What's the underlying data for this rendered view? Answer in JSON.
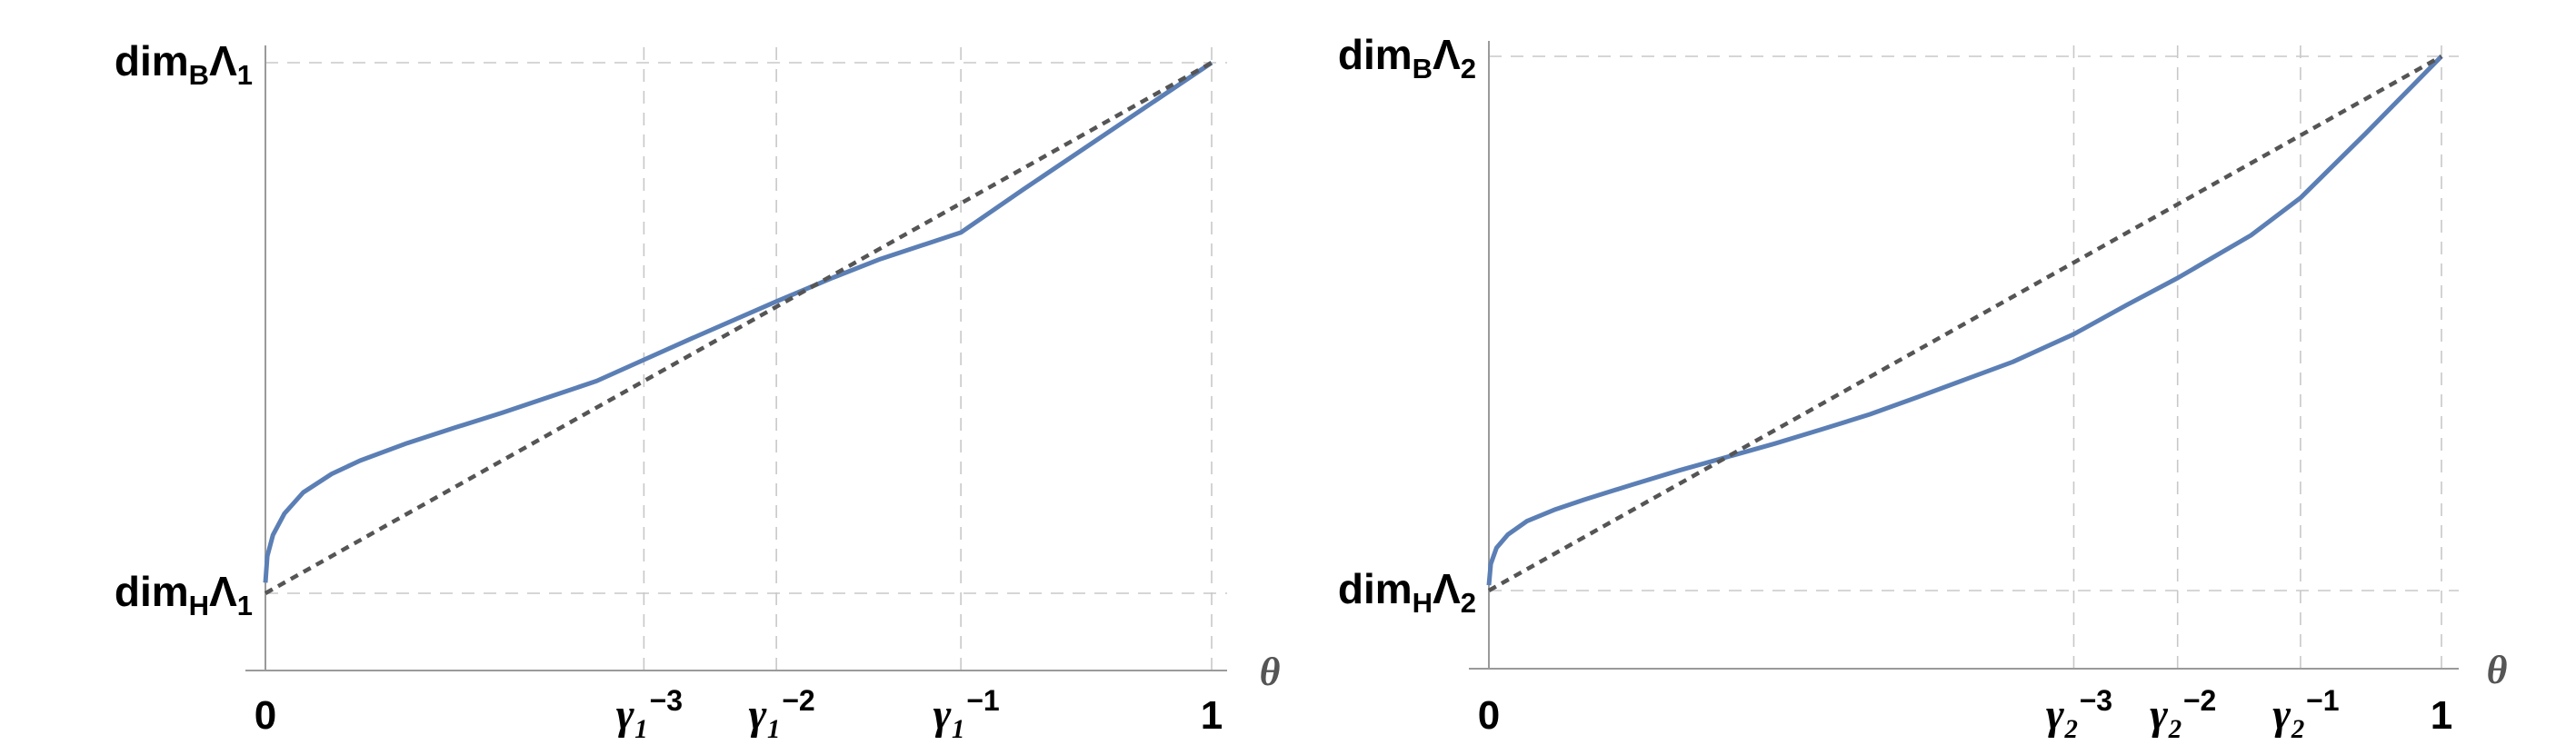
{
  "colors": {
    "curve": "#5b7fb5",
    "diagonal": "#555555",
    "grid": "#c8c8c8",
    "axis": "#9a9a9a"
  },
  "chart_data": [
    {
      "type": "line",
      "xlabel": "θ",
      "x_ticks": [
        {
          "value": 0,
          "base": "0",
          "sup": ""
        },
        {
          "value": 0.4,
          "base": "γ₁",
          "sup": "−3"
        },
        {
          "value": 0.54,
          "base": "γ₁",
          "sup": "−2"
        },
        {
          "value": 0.735,
          "base": "γ₁",
          "sup": "−1"
        },
        {
          "value": 1,
          "base": "1",
          "sup": ""
        }
      ],
      "y_ticks": [
        {
          "value": 0,
          "label": "dim_HΛ_1",
          "main": "dim",
          "sub1": "H",
          "mid": "Λ",
          "sub2": "1"
        },
        {
          "value": 1,
          "label": "dim_BΛ_1",
          "main": "dim",
          "sub1": "B",
          "mid": "Λ",
          "sub2": "1"
        }
      ],
      "xlim": [
        0,
        1.02
      ],
      "ylim": [
        -0.145,
        1.0
      ],
      "series": [
        {
          "style": "solid",
          "x": [
            0,
            0.002,
            0.008,
            0.02,
            0.04,
            0.07,
            0.1,
            0.15,
            0.2,
            0.25,
            0.3,
            0.35,
            0.4,
            0.45,
            0.54,
            0.6,
            0.65,
            0.735,
            0.8,
            0.9,
            1
          ],
          "y": [
            0.02,
            0.07,
            0.11,
            0.15,
            0.19,
            0.225,
            0.25,
            0.283,
            0.312,
            0.34,
            0.37,
            0.4,
            0.44,
            0.48,
            0.55,
            0.595,
            0.63,
            0.68,
            0.76,
            0.88,
            1
          ]
        },
        {
          "style": "dashed",
          "x": [
            0,
            1
          ],
          "y": [
            0,
            1
          ]
        }
      ]
    },
    {
      "type": "line",
      "xlabel": "θ",
      "x_ticks": [
        {
          "value": 0,
          "base": "0",
          "sup": ""
        },
        {
          "value": 0.614,
          "base": "γ₂",
          "sup": "−3"
        },
        {
          "value": 0.723,
          "base": "γ₂",
          "sup": "−2"
        },
        {
          "value": 0.852,
          "base": "γ₂",
          "sup": "−1"
        },
        {
          "value": 1,
          "base": "1",
          "sup": ""
        }
      ],
      "y_ticks": [
        {
          "value": 0,
          "label": "dim_HΛ_2",
          "main": "dim",
          "sub1": "H",
          "mid": "Λ",
          "sub2": "2"
        },
        {
          "value": 1,
          "label": "dim_BΛ_2",
          "main": "dim",
          "sub1": "B",
          "mid": "Λ",
          "sub2": "2"
        }
      ],
      "xlim": [
        0,
        1.02
      ],
      "ylim": [
        -0.145,
        1.0
      ],
      "series": [
        {
          "style": "solid",
          "x": [
            0,
            0.002,
            0.008,
            0.02,
            0.04,
            0.07,
            0.1,
            0.15,
            0.2,
            0.25,
            0.3,
            0.35,
            0.4,
            0.45,
            0.5,
            0.55,
            0.614,
            0.67,
            0.723,
            0.8,
            0.852,
            0.92,
            1
          ],
          "y": [
            0.01,
            0.05,
            0.08,
            0.105,
            0.13,
            0.152,
            0.17,
            0.198,
            0.225,
            0.25,
            0.275,
            0.302,
            0.33,
            0.362,
            0.395,
            0.428,
            0.48,
            0.535,
            0.585,
            0.665,
            0.735,
            0.855,
            1
          ]
        },
        {
          "style": "dashed",
          "x": [
            0,
            1
          ],
          "y": [
            0,
            1
          ]
        }
      ]
    }
  ]
}
